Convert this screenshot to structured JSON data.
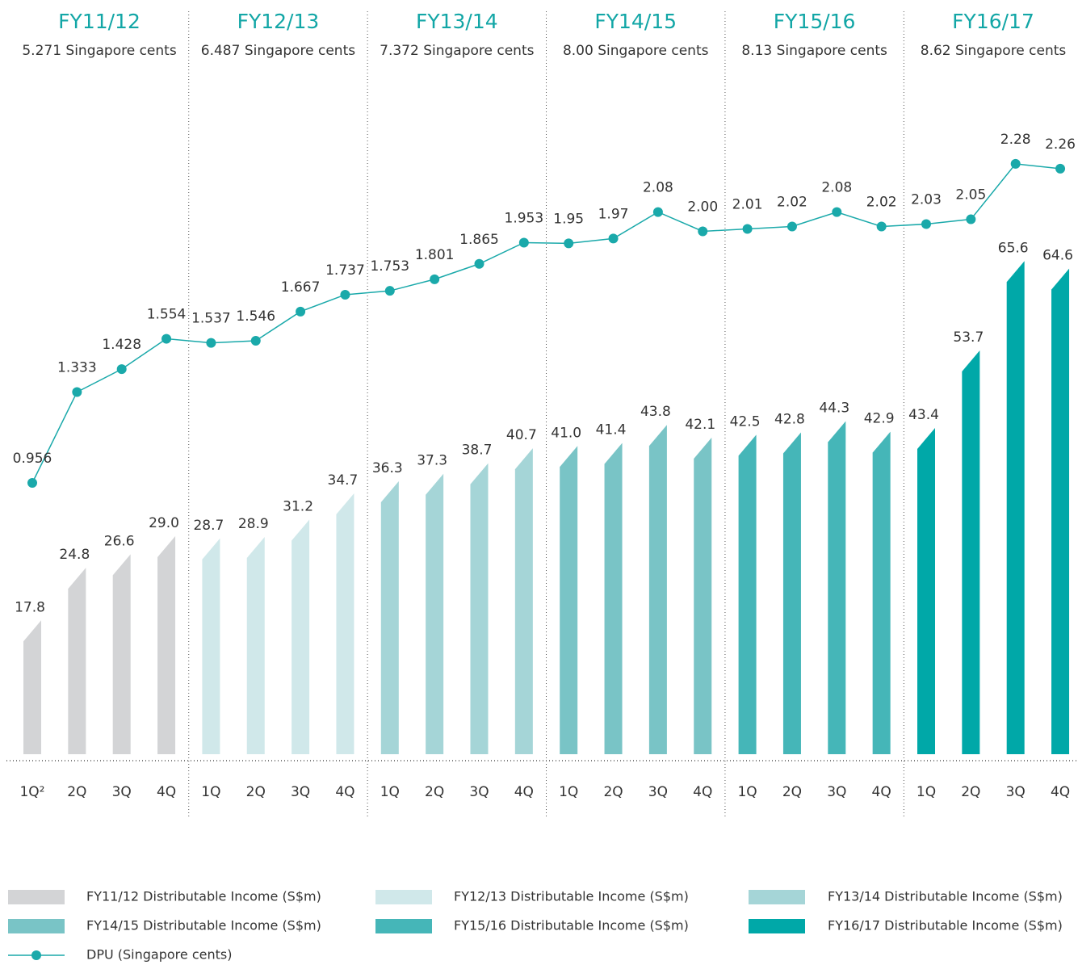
{
  "chart_data": {
    "type": "bar",
    "groups": [
      {
        "name": "FY11/12",
        "subtitle": "5.271 Singapore cents"
      },
      {
        "name": "FY12/13",
        "subtitle": "6.487 Singapore cents"
      },
      {
        "name": "FY13/14",
        "subtitle": "7.372 Singapore cents"
      },
      {
        "name": "FY14/15",
        "subtitle": "8.00 Singapore cents"
      },
      {
        "name": "FY15/16",
        "subtitle": "8.13 Singapore cents"
      },
      {
        "name": "FY16/17",
        "subtitle": "8.62 Singapore cents"
      }
    ],
    "categories": [
      "1Q²",
      "2Q",
      "3Q",
      "4Q",
      "1Q",
      "2Q",
      "3Q",
      "4Q",
      "1Q",
      "2Q",
      "3Q",
      "4Q",
      "1Q",
      "2Q",
      "3Q",
      "4Q",
      "1Q",
      "2Q",
      "3Q",
      "4Q",
      "1Q",
      "2Q",
      "3Q",
      "4Q"
    ],
    "ylim": [
      0,
      100
    ],
    "y2lim": [
      -0.17,
      2.95
    ],
    "series": [
      {
        "name": "FY11/12 Distributable Income (S$m)",
        "color": "#d3d4d6",
        "values": [
          17.8,
          24.8,
          26.6,
          29,
          null,
          null,
          null,
          null,
          null,
          null,
          null,
          null,
          null,
          null,
          null,
          null,
          null,
          null,
          null,
          null,
          null,
          null,
          null,
          null
        ],
        "value_labels": [
          "17.8",
          "24.8",
          "26.6",
          "29.0",
          null,
          null,
          null,
          null,
          null,
          null,
          null,
          null,
          null,
          null,
          null,
          null,
          null,
          null,
          null,
          null,
          null,
          null,
          null,
          null
        ]
      },
      {
        "name": "FY12/13 Distributable Income (S$m)",
        "color": "#d0e8ea",
        "values": [
          null,
          null,
          null,
          null,
          28.7,
          28.9,
          31.2,
          34.7,
          null,
          null,
          null,
          null,
          null,
          null,
          null,
          null,
          null,
          null,
          null,
          null,
          null,
          null,
          null,
          null
        ],
        "value_labels": [
          null,
          null,
          null,
          null,
          "28.7",
          "28.9",
          "31.2",
          "34.7",
          null,
          null,
          null,
          null,
          null,
          null,
          null,
          null,
          null,
          null,
          null,
          null,
          null,
          null,
          null,
          null
        ]
      },
      {
        "name": "FY13/14 Distributable Income (S$m)",
        "color": "#a5d5d7",
        "values": [
          null,
          null,
          null,
          null,
          null,
          null,
          null,
          null,
          36.3,
          37.3,
          38.7,
          40.7,
          null,
          null,
          null,
          null,
          null,
          null,
          null,
          null,
          null,
          null,
          null,
          null
        ],
        "value_labels": [
          null,
          null,
          null,
          null,
          null,
          null,
          null,
          null,
          "36.3",
          "37.3",
          "38.7",
          "40.7",
          null,
          null,
          null,
          null,
          null,
          null,
          null,
          null,
          null,
          null,
          null,
          null
        ]
      },
      {
        "name": "FY14/15 Distributable Income (S$m)",
        "color": "#79c4c6",
        "values": [
          null,
          null,
          null,
          null,
          null,
          null,
          null,
          null,
          null,
          null,
          null,
          null,
          41,
          41.4,
          43.8,
          42.1,
          null,
          null,
          null,
          null,
          null,
          null,
          null,
          null
        ],
        "value_labels": [
          null,
          null,
          null,
          null,
          null,
          null,
          null,
          null,
          null,
          null,
          null,
          null,
          "41.0",
          "41.4",
          "43.8",
          "42.1",
          null,
          null,
          null,
          null,
          null,
          null,
          null,
          null
        ]
      },
      {
        "name": "FY15/16 Distributable Income (S$m)",
        "color": "#45b6b8",
        "values": [
          null,
          null,
          null,
          null,
          null,
          null,
          null,
          null,
          null,
          null,
          null,
          null,
          null,
          null,
          null,
          null,
          42.5,
          42.8,
          44.3,
          42.9,
          null,
          null,
          null,
          null
        ],
        "value_labels": [
          null,
          null,
          null,
          null,
          null,
          null,
          null,
          null,
          null,
          null,
          null,
          null,
          null,
          null,
          null,
          null,
          "42.5",
          "42.8",
          "44.3",
          "42.9",
          null,
          null,
          null,
          null
        ]
      },
      {
        "name": "FY16/17 Distributable Income (S$m)",
        "color": "#00a8a8",
        "values": [
          null,
          null,
          null,
          null,
          null,
          null,
          null,
          null,
          null,
          null,
          null,
          null,
          null,
          null,
          null,
          null,
          null,
          null,
          null,
          null,
          43.4,
          53.7,
          65.6,
          64.6
        ],
        "value_labels": [
          null,
          null,
          null,
          null,
          null,
          null,
          null,
          null,
          null,
          null,
          null,
          null,
          null,
          null,
          null,
          null,
          null,
          null,
          null,
          null,
          "43.4",
          "53.7",
          "65.6",
          "64.6"
        ]
      },
      {
        "name": "DPU (Singapore cents)",
        "color": "#1aa9aa",
        "type": "line",
        "axis": "y2",
        "values": [
          0.956,
          1.333,
          1.428,
          1.554,
          1.537,
          1.546,
          1.667,
          1.737,
          1.753,
          1.801,
          1.865,
          1.953,
          1.95,
          1.97,
          2.08,
          2,
          2.01,
          2.02,
          2.08,
          2.02,
          2.03,
          2.05,
          2.28,
          2.26
        ],
        "value_labels": [
          "0.956",
          "1.333",
          "1.428",
          "1.554",
          "1.537",
          "1.546",
          "1.667",
          "1.737",
          "1.753",
          "1.801",
          "1.865",
          "1.953",
          "1.95",
          "1.97",
          "2.08",
          "2.00",
          "2.01",
          "2.02",
          "2.08",
          "2.02",
          "2.03",
          "2.05",
          "2.28",
          "2.26"
        ]
      }
    ]
  }
}
